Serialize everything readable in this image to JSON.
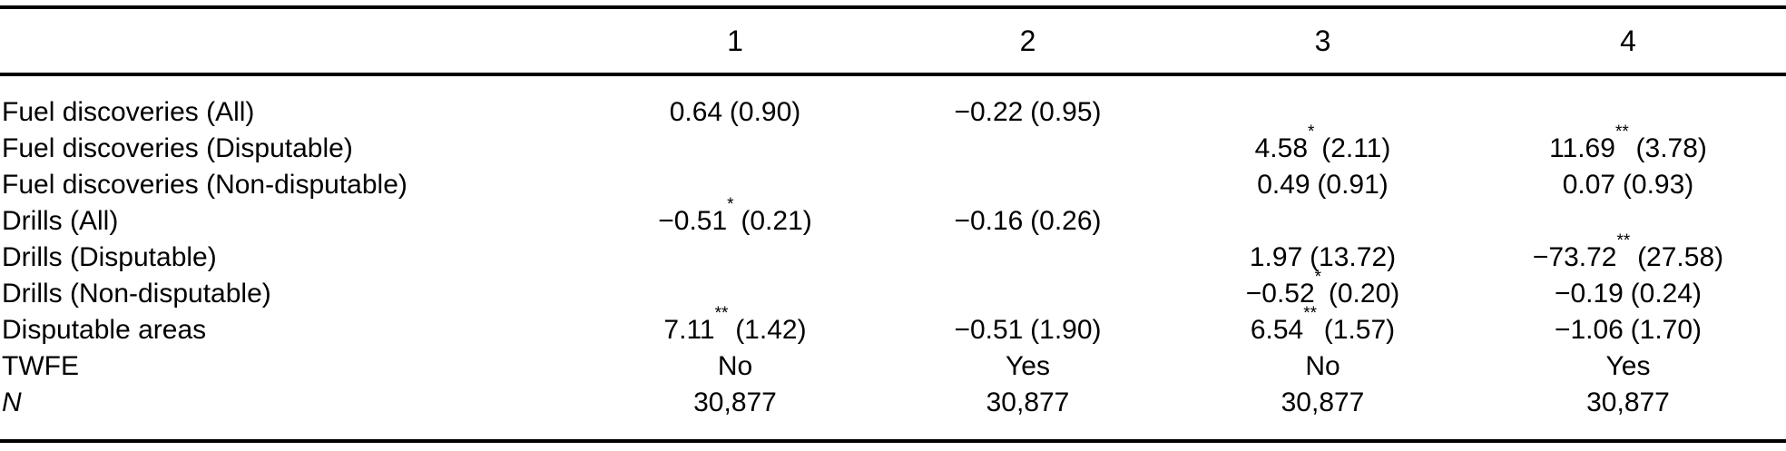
{
  "table": {
    "column_headers": [
      "1",
      "2",
      "3",
      "4"
    ],
    "rows": [
      {
        "label": "Fuel discoveries (All)",
        "cells": [
          {
            "est": "0.64",
            "stars": "",
            "se": "(0.90)"
          },
          {
            "est": "−0.22",
            "stars": "",
            "se": "(0.95)"
          },
          {
            "est": "",
            "stars": "",
            "se": ""
          },
          {
            "est": "",
            "stars": "",
            "se": ""
          }
        ]
      },
      {
        "label": "Fuel discoveries (Disputable)",
        "cells": [
          {
            "est": "",
            "stars": "",
            "se": ""
          },
          {
            "est": "",
            "stars": "",
            "se": ""
          },
          {
            "est": "4.58",
            "stars": "*",
            "se": "(2.11)"
          },
          {
            "est": "11.69",
            "stars": "**",
            "se": "(3.78)"
          }
        ]
      },
      {
        "label": "Fuel discoveries (Non-disputable)",
        "cells": [
          {
            "est": "",
            "stars": "",
            "se": ""
          },
          {
            "est": "",
            "stars": "",
            "se": ""
          },
          {
            "est": "0.49",
            "stars": "",
            "se": "(0.91)"
          },
          {
            "est": "0.07",
            "stars": "",
            "se": "(0.93)"
          }
        ]
      },
      {
        "label": "Drills (All)",
        "cells": [
          {
            "est": "−0.51",
            "stars": "*",
            "se": "(0.21)"
          },
          {
            "est": "−0.16",
            "stars": "",
            "se": "(0.26)"
          },
          {
            "est": "",
            "stars": "",
            "se": ""
          },
          {
            "est": "",
            "stars": "",
            "se": ""
          }
        ]
      },
      {
        "label": "Drills (Disputable)",
        "cells": [
          {
            "est": "",
            "stars": "",
            "se": ""
          },
          {
            "est": "",
            "stars": "",
            "se": ""
          },
          {
            "est": "1.97",
            "stars": "",
            "se": "(13.72)"
          },
          {
            "est": "−73.72",
            "stars": "**",
            "se": "(27.58)"
          }
        ]
      },
      {
        "label": "Drills (Non-disputable)",
        "cells": [
          {
            "est": "",
            "stars": "",
            "se": ""
          },
          {
            "est": "",
            "stars": "",
            "se": ""
          },
          {
            "est": "−0.52",
            "stars": "*",
            "se": "(0.20)"
          },
          {
            "est": "−0.19",
            "stars": "",
            "se": "(0.24)"
          }
        ]
      },
      {
        "label": "Disputable areas",
        "cells": [
          {
            "est": "7.11",
            "stars": "**",
            "se": "(1.42)"
          },
          {
            "est": "−0.51",
            "stars": "",
            "se": "(1.90)"
          },
          {
            "est": "6.54",
            "stars": "**",
            "se": "(1.57)"
          },
          {
            "est": "−1.06",
            "stars": "",
            "se": "(1.70)"
          }
        ]
      },
      {
        "label": "TWFE",
        "cells": [
          {
            "est": "No",
            "stars": "",
            "se": ""
          },
          {
            "est": "Yes",
            "stars": "",
            "se": ""
          },
          {
            "est": "No",
            "stars": "",
            "se": ""
          },
          {
            "est": "Yes",
            "stars": "",
            "se": ""
          }
        ]
      },
      {
        "label": "N",
        "cells": [
          {
            "est": "30,877",
            "stars": "",
            "se": ""
          },
          {
            "est": "30,877",
            "stars": "",
            "se": ""
          },
          {
            "est": "30,877",
            "stars": "",
            "se": ""
          },
          {
            "est": "30,877",
            "stars": "",
            "se": ""
          }
        ]
      }
    ],
    "colors": {
      "text": "#000000",
      "rule": "#000000",
      "background": "#ffffff"
    }
  }
}
